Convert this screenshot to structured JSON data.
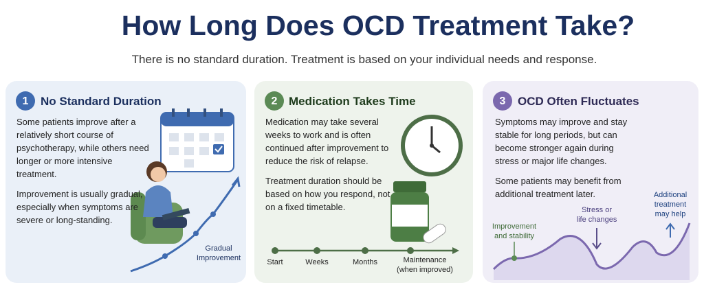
{
  "header": {
    "title": "How Long Does OCD Treatment Take?",
    "subtitle": "There is no standard duration. Treatment is based on your individual needs and response."
  },
  "cards": [
    {
      "number": "1",
      "title": "No Standard Duration",
      "paragraphs": [
        "Some patients improve after a relatively short course of psychotherapy, while others need longer or more intensive treatment.",
        "Improvement is usually gradual, especially when symptoms are severe or long-standing."
      ],
      "labels": [
        {
          "lines": [
            "Gradual",
            "Improvement"
          ]
        }
      ]
    },
    {
      "number": "2",
      "title": "Medication Takes Time",
      "paragraphs": [
        "Medication may take several weeks to work and is often continued after improvement to reduce the risk of relapse.",
        "Treatment duration should be based on how you respond, not on a fixed timetable."
      ],
      "labels": [
        {
          "lines": [
            "Start"
          ]
        },
        {
          "lines": [
            "Weeks"
          ]
        },
        {
          "lines": [
            "Months"
          ]
        },
        {
          "lines": [
            "Maintenance",
            "(when improved)"
          ]
        }
      ]
    },
    {
      "number": "3",
      "title": "OCD Often Fluctuates",
      "paragraphs": [
        "Symptoms may improve and stay stable for long periods, but can become stronger again during stress or major life changes.",
        "Some patients may benefit from additional treatment later."
      ],
      "labels": [
        {
          "lines": [
            "Improvement",
            "and stability"
          ]
        },
        {
          "lines": [
            "Stress or",
            "life changes"
          ]
        },
        {
          "lines": [
            "Additional",
            "treatment",
            "may help"
          ]
        }
      ]
    }
  ]
}
